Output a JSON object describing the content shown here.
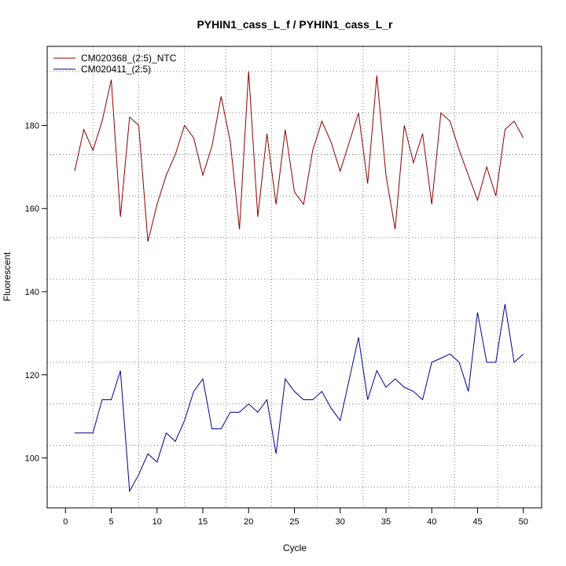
{
  "chart_data": {
    "type": "line",
    "title": "PYHIN1_cass_L_f / PYHIN1_cass_L_r",
    "xlabel": "Cycle",
    "ylabel": "Fluorescent",
    "xlim": [
      -2,
      52
    ],
    "ylim": [
      88,
      199
    ],
    "x_ticks": [
      0,
      5,
      10,
      15,
      20,
      25,
      30,
      35,
      40,
      45,
      50
    ],
    "y_ticks": [
      100,
      120,
      140,
      160,
      180
    ],
    "x_gridlines_dotted": [
      3,
      8,
      13,
      17.5,
      22.5,
      27.5,
      32.5,
      37.5,
      42.5,
      47.2
    ],
    "y_gridlines_dotted": [
      93,
      103,
      113,
      123,
      133,
      143,
      153,
      163,
      173,
      183,
      193
    ],
    "grid": true,
    "legend_position": "top-left",
    "x": [
      1,
      2,
      3,
      4,
      5,
      6,
      7,
      8,
      9,
      10,
      11,
      12,
      13,
      14,
      15,
      16,
      17,
      18,
      19,
      20,
      21,
      22,
      23,
      24,
      25,
      26,
      27,
      28,
      29,
      30,
      31,
      32,
      33,
      34,
      35,
      36,
      37,
      38,
      39,
      40,
      41,
      42,
      43,
      44,
      45,
      46,
      47,
      48,
      49,
      50
    ],
    "series": [
      {
        "name": "CM020368_(2:5)_NTC",
        "color": "#8b0000",
        "values": [
          169,
          179,
          174,
          181,
          191,
          158,
          182,
          180,
          152,
          161,
          168,
          173,
          180,
          177,
          168,
          175,
          187,
          176,
          155,
          193,
          158,
          178,
          161,
          179,
          164,
          161,
          174,
          181,
          176,
          169,
          176,
          183,
          166,
          192,
          168,
          155,
          180,
          171,
          178,
          161,
          183,
          181,
          174,
          168,
          162,
          170,
          163,
          179,
          181,
          177
        ]
      },
      {
        "name": "CM020411_(2:5)",
        "color": "#00008b",
        "values": [
          106,
          106,
          106,
          114,
          114,
          121,
          92,
          96,
          101,
          99,
          106,
          104,
          109,
          116,
          119,
          107,
          107,
          111,
          111,
          113,
          111,
          114,
          101,
          119,
          116,
          114,
          114,
          116,
          112,
          109,
          119,
          129,
          114,
          121,
          117,
          119,
          117,
          116,
          114,
          123,
          124,
          125,
          123,
          116,
          135,
          123,
          123,
          137,
          123,
          125
        ]
      }
    ]
  }
}
